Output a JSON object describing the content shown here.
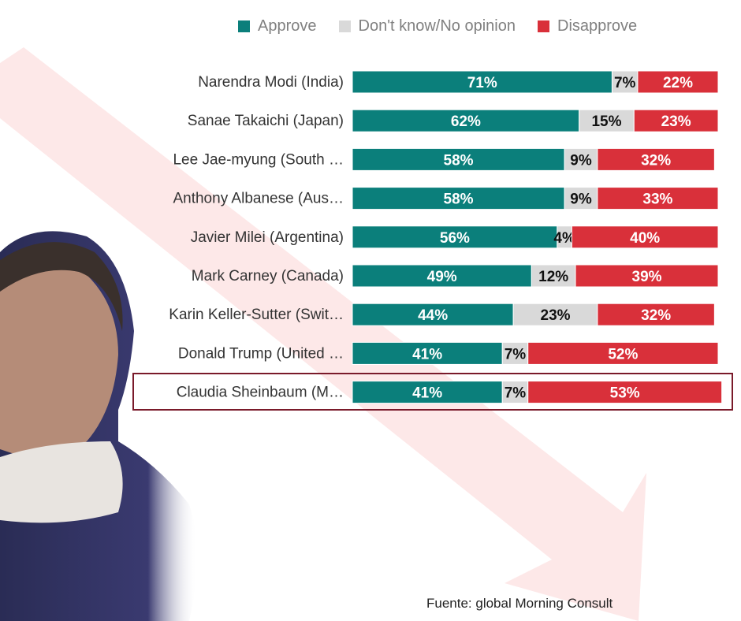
{
  "chart_data": {
    "type": "bar",
    "orientation": "horizontal",
    "stacked": true,
    "categories": [
      "Narendra Modi (India)",
      "Sanae Takaichi (Japan)",
      "Lee Jae-myung (South …",
      "Anthony Albanese (Aus…",
      "Javier Milei (Argentina)",
      "Mark Carney (Canada)",
      "Karin Keller-Sutter (Swit…",
      "Donald Trump (United …",
      "Claudia Sheinbaum (M…"
    ],
    "series": [
      {
        "name": "Approve",
        "color": "#0b7f7b",
        "values": [
          71,
          62,
          58,
          58,
          56,
          49,
          44,
          41,
          41
        ]
      },
      {
        "name": "Don't know/No opinion",
        "color": "#d9d9d9",
        "values": [
          7,
          15,
          9,
          9,
          4,
          12,
          23,
          7,
          7
        ]
      },
      {
        "name": "Disapprove",
        "color": "#d9303a",
        "values": [
          22,
          23,
          32,
          33,
          40,
          39,
          32,
          52,
          53
        ]
      }
    ],
    "xlim": [
      0,
      100
    ],
    "legend": "top",
    "highlighted_category": "Claudia Sheinbaum (M…",
    "highlight_color": "#7a1a2a"
  },
  "source": "Fuente: global Morning Consult"
}
